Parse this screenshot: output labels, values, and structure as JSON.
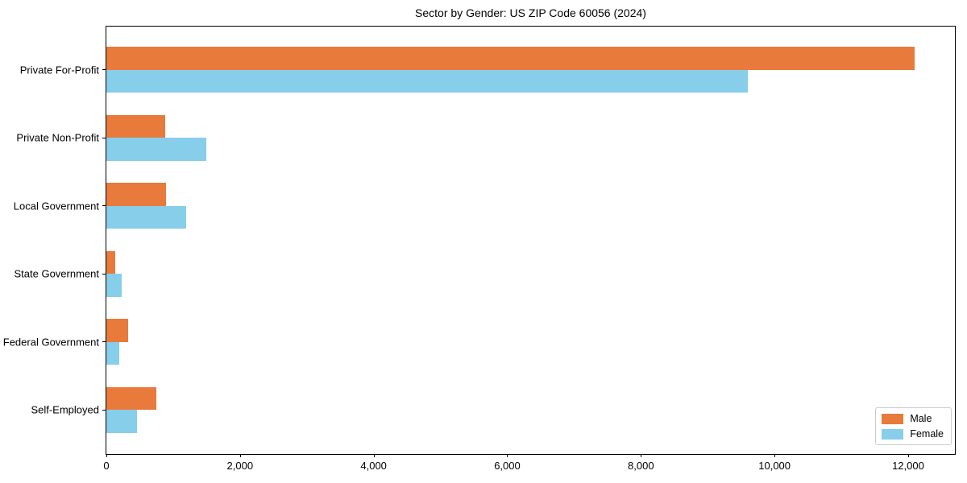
{
  "chart_data": {
    "type": "bar",
    "orientation": "horizontal",
    "title": "Sector by Gender: US ZIP Code 60056 (2024)",
    "categories": [
      "Private For-Profit",
      "Private Non-Profit",
      "Local Government",
      "State Government",
      "Federal Government",
      "Self-Employed"
    ],
    "series": [
      {
        "name": "Male",
        "color": "#E87A3C",
        "values": [
          12100,
          880,
          890,
          130,
          320,
          750
        ]
      },
      {
        "name": "Female",
        "color": "#87CEEB",
        "values": [
          9600,
          1490,
          1200,
          230,
          190,
          460
        ]
      }
    ],
    "xlim": [
      0,
      12700
    ],
    "xticks": [
      0,
      2000,
      4000,
      6000,
      8000,
      10000,
      12000
    ],
    "xtick_labels": [
      "0",
      "2,000",
      "4,000",
      "6,000",
      "8,000",
      "10,000",
      "12,000"
    ],
    "xlabel": "",
    "ylabel": "",
    "grid": false,
    "legend": {
      "position": "lower right"
    },
    "colors": {
      "background": "#ffffff",
      "frame": "#000000",
      "legend_border": "#cccccc"
    }
  }
}
